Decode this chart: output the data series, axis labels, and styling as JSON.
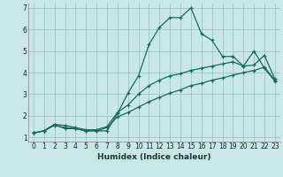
{
  "xlabel": "Humidex (Indice chaleur)",
  "bg_color": "#c8e8e8",
  "line_color": "#1a6b5a",
  "grid_color": "#a0c8c0",
  "xlim": [
    -0.5,
    23.5
  ],
  "ylim": [
    0.8,
    7.2
  ],
  "yticks": [
    1,
    2,
    3,
    4,
    5,
    6,
    7
  ],
  "xticks": [
    0,
    1,
    2,
    3,
    4,
    5,
    6,
    7,
    8,
    9,
    10,
    11,
    12,
    13,
    14,
    15,
    16,
    17,
    18,
    19,
    20,
    21,
    22,
    23
  ],
  "lines": [
    {
      "x": [
        0,
        1,
        2,
        3,
        4,
        5,
        6,
        7,
        8,
        9,
        10,
        11,
        12,
        13,
        14,
        15,
        16,
        17,
        18,
        19,
        20,
        21,
        22,
        23
      ],
      "y": [
        1.2,
        1.3,
        1.6,
        1.4,
        1.4,
        1.3,
        1.3,
        1.3,
        2.1,
        3.05,
        3.85,
        5.3,
        6.1,
        6.55,
        6.55,
        7.0,
        5.8,
        5.5,
        4.75,
        4.75,
        4.3,
        5.0,
        4.2,
        3.6
      ]
    },
    {
      "x": [
        0,
        1,
        2,
        3,
        4,
        5,
        6,
        7,
        8,
        9,
        10,
        11,
        12,
        13,
        14,
        15,
        16,
        17,
        18,
        19,
        20,
        21,
        22,
        23
      ],
      "y": [
        1.2,
        1.3,
        1.6,
        1.55,
        1.45,
        1.35,
        1.35,
        1.5,
        2.15,
        2.5,
        3.0,
        3.4,
        3.65,
        3.85,
        3.95,
        4.1,
        4.2,
        4.3,
        4.4,
        4.5,
        4.3,
        4.35,
        4.8,
        3.7
      ]
    },
    {
      "x": [
        0,
        1,
        2,
        3,
        4,
        5,
        6,
        7,
        8,
        9,
        10,
        11,
        12,
        13,
        14,
        15,
        16,
        17,
        18,
        19,
        20,
        21,
        22,
        23
      ],
      "y": [
        1.2,
        1.3,
        1.55,
        1.45,
        1.4,
        1.3,
        1.3,
        1.45,
        1.95,
        2.15,
        2.4,
        2.65,
        2.85,
        3.05,
        3.2,
        3.4,
        3.5,
        3.65,
        3.75,
        3.88,
        4.0,
        4.1,
        4.25,
        3.65
      ]
    }
  ]
}
